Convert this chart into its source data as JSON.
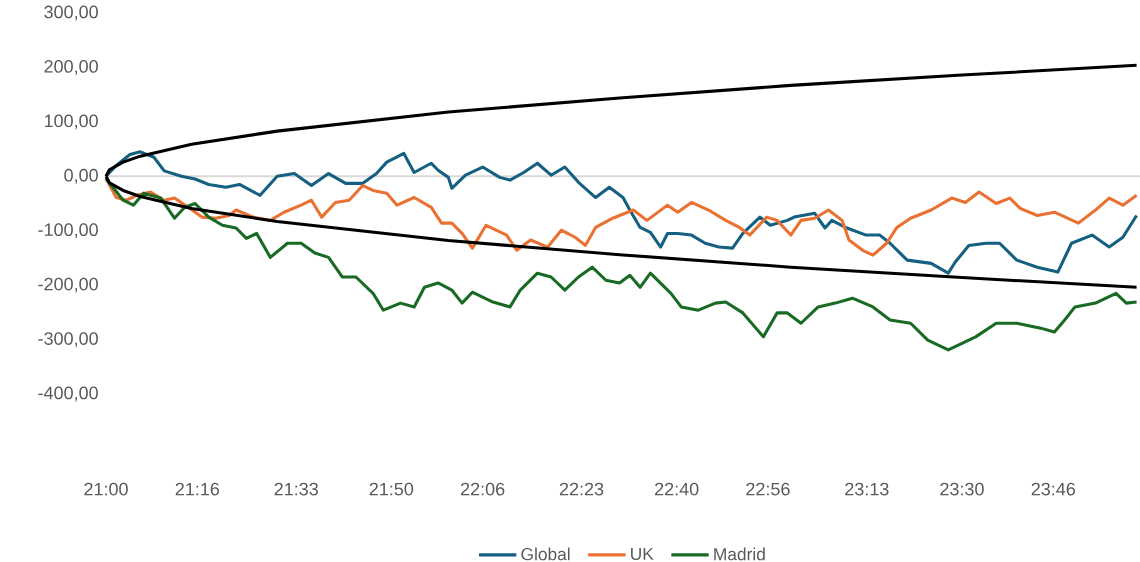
{
  "chart_data": {
    "type": "line",
    "legend": "bottom",
    "grid": false,
    "marker": "none",
    "line_style": "solid",
    "xlim": [
      21,
      24.02
    ],
    "ylim": [
      -400,
      300
    ],
    "xticks": [
      {
        "value": 21,
        "label": "21:00"
      },
      {
        "value": 21.2667,
        "label": "21:16"
      },
      {
        "value": 21.5556,
        "label": "21:33"
      },
      {
        "value": 21.8333,
        "label": "21:50"
      },
      {
        "value": 22.1,
        "label": "22:06"
      },
      {
        "value": 22.3889,
        "label": "22:23"
      },
      {
        "value": 22.6667,
        "label": "22:40"
      },
      {
        "value": 22.9333,
        "label": "22:56"
      },
      {
        "value": 23.2222,
        "label": "23:13"
      },
      {
        "value": 23.5,
        "label": "23:30"
      },
      {
        "value": 23.7667,
        "label": "23:46"
      }
    ],
    "yticks": [
      {
        "value": 300,
        "label": "300,00"
      },
      {
        "value": 200,
        "label": "200,00"
      },
      {
        "value": 100,
        "label": "100,00"
      },
      {
        "value": 0,
        "label": "0,00"
      },
      {
        "value": -100,
        "label": "-100,00"
      },
      {
        "value": -200,
        "label": "-200,00"
      },
      {
        "value": -300,
        "label": "-300,00"
      },
      {
        "value": -400,
        "label": "-400,00"
      }
    ],
    "ref_lines": [
      {
        "axis": "y",
        "value": 0,
        "color": "#d9d9d9"
      }
    ],
    "series": [
      {
        "name": "Global",
        "color": "#156082",
        "x": [
          21.0,
          21.03,
          21.07,
          21.1,
          21.14,
          21.17,
          21.22,
          21.26,
          21.3,
          21.35,
          21.39,
          21.45,
          21.5,
          21.55,
          21.6,
          21.65,
          21.7,
          21.75,
          21.79,
          21.82,
          21.87,
          21.9,
          21.95,
          21.97,
          22.0,
          22.01,
          22.05,
          22.1,
          22.15,
          22.18,
          22.22,
          22.26,
          22.3,
          22.34,
          22.38,
          22.43,
          22.47,
          22.51,
          22.53,
          22.56,
          22.59,
          22.62,
          22.64,
          22.67,
          22.71,
          22.75,
          22.79,
          22.83,
          22.86,
          22.91,
          22.94,
          22.99,
          23.01,
          23.07,
          23.1,
          23.12,
          23.16,
          23.22,
          23.26,
          23.29,
          23.34,
          23.41,
          23.46,
          23.48,
          23.52,
          23.57,
          23.61,
          23.66,
          23.72,
          23.78,
          23.82,
          23.88,
          23.93,
          23.97,
          24.01
        ],
        "values": [
          0,
          20,
          40,
          45,
          35,
          10,
          0,
          -5,
          -15,
          -20,
          -15,
          -35,
          0,
          5,
          -17,
          5,
          -13,
          -13,
          5,
          26,
          42,
          7,
          24,
          11,
          -2,
          -22,
          2,
          17,
          -2,
          -7,
          7,
          24,
          2,
          17,
          -11,
          -39,
          -20,
          -39,
          -62,
          -94,
          -103,
          -130,
          -105,
          -105,
          -108,
          -123,
          -130,
          -132,
          -105,
          -75,
          -90,
          -81,
          -75,
          -68,
          -95,
          -81,
          -94,
          -108,
          -108,
          -123,
          -154,
          -160,
          -178,
          -158,
          -127,
          -123,
          -123,
          -154,
          -167,
          -176,
          -123,
          -108,
          -130,
          -112,
          -72
        ]
      },
      {
        "name": "UK",
        "color": "#e97132",
        "x": [
          21.0,
          21.03,
          21.06,
          21.09,
          21.13,
          21.17,
          21.2,
          21.24,
          21.28,
          21.32,
          21.36,
          21.38,
          21.43,
          21.48,
          21.52,
          21.57,
          21.6,
          21.63,
          21.67,
          21.71,
          21.75,
          21.78,
          21.82,
          21.85,
          21.9,
          21.95,
          21.98,
          22.01,
          22.04,
          22.07,
          22.11,
          22.17,
          22.2,
          22.24,
          22.29,
          22.33,
          22.37,
          22.4,
          22.43,
          22.48,
          22.54,
          22.58,
          22.64,
          22.67,
          22.71,
          22.76,
          22.81,
          22.85,
          22.88,
          22.93,
          22.96,
          23.0,
          23.03,
          23.07,
          23.11,
          23.15,
          23.17,
          23.21,
          23.24,
          23.28,
          23.31,
          23.35,
          23.41,
          23.47,
          23.51,
          23.55,
          23.6,
          23.64,
          23.67,
          23.72,
          23.77,
          23.84,
          23.89,
          23.93,
          23.97,
          24.01
        ],
        "values": [
          -4,
          -39,
          -44,
          -35,
          -29,
          -44,
          -40,
          -57,
          -75,
          -77,
          -72,
          -62,
          -75,
          -81,
          -66,
          -53,
          -44,
          -75,
          -48,
          -44,
          -17,
          -26,
          -31,
          -53,
          -39,
          -57,
          -86,
          -86,
          -105,
          -132,
          -90,
          -108,
          -136,
          -117,
          -130,
          -99,
          -112,
          -127,
          -94,
          -77,
          -62,
          -81,
          -53,
          -66,
          -48,
          -62,
          -81,
          -94,
          -108,
          -75,
          -81,
          -108,
          -81,
          -77,
          -62,
          -81,
          -117,
          -136,
          -145,
          -123,
          -94,
          -77,
          -62,
          -40,
          -48,
          -29,
          -50,
          -40,
          -59,
          -72,
          -66,
          -86,
          -62,
          -40,
          -53,
          -35
        ]
      },
      {
        "name": "Madrid",
        "color": "#196b24",
        "x": [
          21.0,
          21.05,
          21.08,
          21.11,
          21.16,
          21.2,
          21.23,
          21.26,
          21.3,
          21.34,
          21.38,
          21.41,
          21.44,
          21.48,
          21.53,
          21.57,
          21.61,
          21.65,
          21.69,
          21.73,
          21.78,
          21.81,
          21.86,
          21.9,
          21.93,
          21.97,
          22.01,
          22.04,
          22.07,
          22.13,
          22.18,
          22.21,
          22.26,
          22.3,
          22.34,
          22.38,
          22.42,
          22.46,
          22.5,
          22.53,
          22.56,
          22.59,
          22.65,
          22.68,
          22.73,
          22.78,
          22.81,
          22.86,
          22.92,
          22.96,
          22.99,
          23.03,
          23.08,
          23.13,
          23.18,
          23.24,
          23.29,
          23.35,
          23.4,
          23.46,
          23.54,
          23.6,
          23.66,
          23.73,
          23.77,
          23.8,
          23.83,
          23.89,
          23.95,
          23.98,
          24.01
        ],
        "values": [
          -4,
          -44,
          -53,
          -31,
          -40,
          -77,
          -57,
          -50,
          -75,
          -90,
          -95,
          -114,
          -105,
          -149,
          -123,
          -123,
          -141,
          -149,
          -185,
          -185,
          -215,
          -246,
          -233,
          -240,
          -204,
          -196,
          -209,
          -233,
          -213,
          -231,
          -240,
          -209,
          -178,
          -185,
          -209,
          -185,
          -167,
          -191,
          -196,
          -182,
          -204,
          -178,
          -215,
          -240,
          -246,
          -233,
          -231,
          -251,
          -295,
          -251,
          -251,
          -270,
          -240,
          -233,
          -224,
          -240,
          -264,
          -270,
          -301,
          -319,
          -295,
          -270,
          -270,
          -279,
          -286,
          -264,
          -240,
          -233,
          -215,
          -233,
          -231
        ]
      },
      {
        "color": "#000000",
        "x": [
          21,
          21.01,
          21.05,
          21.1,
          21.25,
          21.5,
          22,
          22.5,
          23,
          23.5,
          24.01
        ],
        "values": [
          0,
          12,
          26,
          37,
          59,
          83,
          118,
          144,
          167,
          186,
          204
        ]
      },
      {
        "color": "#000000",
        "x": [
          21,
          21.01,
          21.05,
          21.1,
          21.25,
          21.5,
          22,
          22.5,
          23,
          23.5,
          24.01
        ],
        "values": [
          0,
          -12,
          -26,
          -37,
          -59,
          -83,
          -118,
          -144,
          -167,
          -186,
          -204
        ]
      }
    ]
  }
}
